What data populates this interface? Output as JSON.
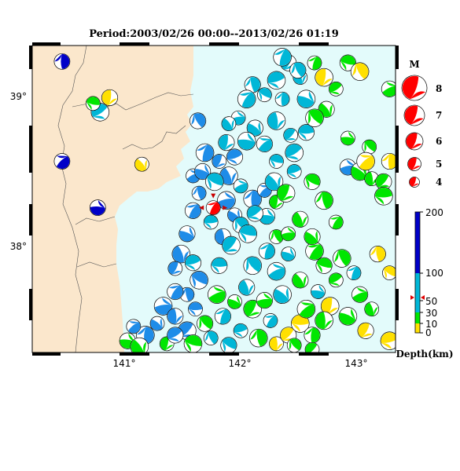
{
  "title": "Period:2003/02/26 00:00--2013/02/26 01:19",
  "lon_ticks": [
    "141°",
    "142°",
    "143°"
  ],
  "lat_ticks": [
    "39°",
    "38°"
  ],
  "map": {
    "lon_range": [
      140.25,
      143.3
    ],
    "lat_range": [
      37.3,
      39.42
    ]
  },
  "magnitude_legend": {
    "title": "M",
    "labels": [
      "8",
      "7",
      "6",
      "5",
      "4"
    ]
  },
  "depth_scale": {
    "title": "Depth(km)",
    "labels": [
      "200",
      "100",
      "50",
      "30",
      "10",
      "0"
    ]
  },
  "colors": {
    "land": "#fbe7cc",
    "sea": "#e3fbfb",
    "shallow": "#ffe000",
    "d10_30": "#00e600",
    "d30_100": "#00b7d7",
    "d100_200": "#0000c8",
    "mainshock": "#ff0000",
    "mid_blue": "#1e8ce8"
  },
  "mainshock": {
    "lon": 141.77,
    "lat": 38.3
  },
  "mechanisms": [
    {
      "lon": 140.5,
      "lat": 39.31,
      "d": "deep"
    },
    {
      "lon": 140.5,
      "lat": 38.62,
      "d": "deep"
    },
    {
      "lon": 140.8,
      "lat": 38.3,
      "d": "deep"
    },
    {
      "lon": 141.17,
      "lat": 38.6,
      "d": "shallow"
    },
    {
      "lon": 140.9,
      "lat": 39.06,
      "d": "shallow"
    },
    {
      "lon": 140.82,
      "lat": 38.96,
      "d": "mid"
    },
    {
      "lon": 140.76,
      "lat": 39.02,
      "d": "green"
    },
    {
      "lon": 141.64,
      "lat": 38.9,
      "d": "blue"
    },
    {
      "lon": 141.7,
      "lat": 38.68,
      "d": "blue"
    },
    {
      "lon": 141.6,
      "lat": 38.52,
      "d": "blue"
    },
    {
      "lon": 141.68,
      "lat": 38.55,
      "d": "blue"
    },
    {
      "lon": 141.9,
      "lat": 38.52,
      "d": "blue"
    },
    {
      "lon": 141.82,
      "lat": 38.62,
      "d": "blue"
    },
    {
      "lon": 141.95,
      "lat": 38.65,
      "d": "blue"
    },
    {
      "lon": 141.78,
      "lat": 38.48,
      "d": "cyan"
    },
    {
      "lon": 141.65,
      "lat": 38.4,
      "d": "blue"
    },
    {
      "lon": 141.6,
      "lat": 38.28,
      "d": "blue"
    },
    {
      "lon": 141.88,
      "lat": 38.35,
      "d": "blue"
    },
    {
      "lon": 141.95,
      "lat": 38.25,
      "d": "blue"
    },
    {
      "lon": 141.85,
      "lat": 38.1,
      "d": "blue"
    },
    {
      "lon": 141.92,
      "lat": 38.04,
      "d": "cyan"
    },
    {
      "lon": 141.75,
      "lat": 38.2,
      "d": "cyan"
    },
    {
      "lon": 142.0,
      "lat": 38.18,
      "d": "cyan"
    },
    {
      "lon": 142.1,
      "lat": 38.36,
      "d": "blue"
    },
    {
      "lon": 142.2,
      "lat": 38.42,
      "d": "blue"
    },
    {
      "lon": 142.22,
      "lat": 38.24,
      "d": "cyan"
    },
    {
      "lon": 142.28,
      "lat": 38.48,
      "d": "cyan"
    },
    {
      "lon": 142.3,
      "lat": 38.34,
      "d": "green"
    },
    {
      "lon": 142.12,
      "lat": 38.26,
      "d": "cyan"
    },
    {
      "lon": 142.06,
      "lat": 38.12,
      "d": "cyan"
    },
    {
      "lon": 142.3,
      "lat": 38.1,
      "d": "green"
    },
    {
      "lon": 142.22,
      "lat": 38.0,
      "d": "cyan"
    },
    {
      "lon": 142.3,
      "lat": 37.86,
      "d": "cyan"
    },
    {
      "lon": 142.4,
      "lat": 37.98,
      "d": "cyan"
    },
    {
      "lon": 142.5,
      "lat": 38.22,
      "d": "green"
    },
    {
      "lon": 142.38,
      "lat": 38.4,
      "d": "green"
    },
    {
      "lon": 142.45,
      "lat": 38.55,
      "d": "cyan"
    },
    {
      "lon": 142.6,
      "lat": 38.48,
      "d": "green"
    },
    {
      "lon": 142.7,
      "lat": 38.35,
      "d": "green"
    },
    {
      "lon": 142.8,
      "lat": 38.2,
      "d": "green"
    },
    {
      "lon": 142.9,
      "lat": 38.58,
      "d": "blue"
    },
    {
      "lon": 143.0,
      "lat": 38.55,
      "d": "green"
    },
    {
      "lon": 143.1,
      "lat": 38.5,
      "d": "green"
    },
    {
      "lon": 143.2,
      "lat": 38.48,
      "d": "green"
    },
    {
      "lon": 143.2,
      "lat": 38.38,
      "d": "green"
    },
    {
      "lon": 143.08,
      "lat": 38.72,
      "d": "green"
    },
    {
      "lon": 143.25,
      "lat": 38.62,
      "d": "shallow"
    },
    {
      "lon": 143.05,
      "lat": 38.62,
      "d": "shallow"
    },
    {
      "lon": 142.9,
      "lat": 38.78,
      "d": "green"
    },
    {
      "lon": 142.72,
      "lat": 38.98,
      "d": "green"
    },
    {
      "lon": 142.7,
      "lat": 39.2,
      "d": "shallow"
    },
    {
      "lon": 142.8,
      "lat": 39.12,
      "d": "green"
    },
    {
      "lon": 142.9,
      "lat": 39.3,
      "d": "green"
    },
    {
      "lon": 143.0,
      "lat": 39.24,
      "d": "shallow"
    },
    {
      "lon": 142.62,
      "lat": 39.3,
      "d": "green"
    },
    {
      "lon": 143.25,
      "lat": 39.12,
      "d": "green"
    },
    {
      "lon": 142.55,
      "lat": 39.05,
      "d": "cyan"
    },
    {
      "lon": 142.5,
      "lat": 39.2,
      "d": "cyan"
    },
    {
      "lon": 142.4,
      "lat": 39.3,
      "d": "cyan"
    },
    {
      "lon": 142.3,
      "lat": 39.18,
      "d": "cyan"
    },
    {
      "lon": 142.2,
      "lat": 39.08,
      "d": "cyan"
    },
    {
      "lon": 142.1,
      "lat": 39.15,
      "d": "cyan"
    },
    {
      "lon": 142.05,
      "lat": 39.05,
      "d": "cyan"
    },
    {
      "lon": 141.98,
      "lat": 38.92,
      "d": "cyan"
    },
    {
      "lon": 142.12,
      "lat": 38.85,
      "d": "cyan"
    },
    {
      "lon": 142.3,
      "lat": 38.9,
      "d": "cyan"
    },
    {
      "lon": 142.42,
      "lat": 38.8,
      "d": "cyan"
    },
    {
      "lon": 142.55,
      "lat": 38.82,
      "d": "cyan"
    },
    {
      "lon": 142.62,
      "lat": 38.92,
      "d": "green"
    },
    {
      "lon": 142.35,
      "lat": 39.05,
      "d": "cyan"
    },
    {
      "lon": 142.2,
      "lat": 38.74,
      "d": "cyan"
    },
    {
      "lon": 142.05,
      "lat": 38.76,
      "d": "cyan"
    },
    {
      "lon": 141.9,
      "lat": 38.88,
      "d": "cyan"
    },
    {
      "lon": 141.88,
      "lat": 38.75,
      "d": "cyan"
    },
    {
      "lon": 142.45,
      "lat": 38.68,
      "d": "cyan"
    },
    {
      "lon": 142.3,
      "lat": 38.62,
      "d": "cyan"
    },
    {
      "lon": 142.48,
      "lat": 39.25,
      "d": "cyan"
    },
    {
      "lon": 142.35,
      "lat": 39.34,
      "d": "cyan"
    },
    {
      "lon": 142.0,
      "lat": 38.45,
      "d": "cyan"
    },
    {
      "lon": 141.55,
      "lat": 38.12,
      "d": "blue"
    },
    {
      "lon": 141.5,
      "lat": 37.98,
      "d": "blue"
    },
    {
      "lon": 141.45,
      "lat": 37.88,
      "d": "blue"
    },
    {
      "lon": 141.6,
      "lat": 37.92,
      "d": "cyan"
    },
    {
      "lon": 141.65,
      "lat": 37.8,
      "d": "blue"
    },
    {
      "lon": 141.55,
      "lat": 37.7,
      "d": "blue"
    },
    {
      "lon": 141.45,
      "lat": 37.72,
      "d": "blue"
    },
    {
      "lon": 141.35,
      "lat": 37.62,
      "d": "blue"
    },
    {
      "lon": 141.3,
      "lat": 37.5,
      "d": "blue"
    },
    {
      "lon": 141.45,
      "lat": 37.55,
      "d": "blue"
    },
    {
      "lon": 141.55,
      "lat": 37.45,
      "d": "blue"
    },
    {
      "lon": 141.62,
      "lat": 37.6,
      "d": "blue"
    },
    {
      "lon": 141.7,
      "lat": 37.5,
      "d": "green"
    },
    {
      "lon": 141.2,
      "lat": 37.42,
      "d": "blue"
    },
    {
      "lon": 141.1,
      "lat": 37.48,
      "d": "blue"
    },
    {
      "lon": 141.05,
      "lat": 37.38,
      "d": "green"
    },
    {
      "lon": 141.15,
      "lat": 37.34,
      "d": "green"
    },
    {
      "lon": 141.38,
      "lat": 37.36,
      "d": "green"
    },
    {
      "lon": 141.45,
      "lat": 37.42,
      "d": "blue"
    },
    {
      "lon": 141.6,
      "lat": 37.36,
      "d": "green"
    },
    {
      "lon": 141.75,
      "lat": 37.4,
      "d": "cyan"
    },
    {
      "lon": 141.85,
      "lat": 37.55,
      "d": "cyan"
    },
    {
      "lon": 141.8,
      "lat": 37.7,
      "d": "green"
    },
    {
      "lon": 141.95,
      "lat": 37.65,
      "d": "green"
    },
    {
      "lon": 142.05,
      "lat": 37.75,
      "d": "cyan"
    },
    {
      "lon": 142.1,
      "lat": 37.6,
      "d": "green"
    },
    {
      "lon": 142.0,
      "lat": 37.45,
      "d": "cyan"
    },
    {
      "lon": 141.9,
      "lat": 37.35,
      "d": "cyan"
    },
    {
      "lon": 142.15,
      "lat": 37.4,
      "d": "green"
    },
    {
      "lon": 142.25,
      "lat": 37.52,
      "d": "cyan"
    },
    {
      "lon": 142.2,
      "lat": 37.66,
      "d": "green"
    },
    {
      "lon": 142.35,
      "lat": 37.7,
      "d": "cyan"
    },
    {
      "lon": 142.3,
      "lat": 37.36,
      "d": "shallow"
    },
    {
      "lon": 142.4,
      "lat": 37.42,
      "d": "shallow"
    },
    {
      "lon": 142.5,
      "lat": 37.5,
      "d": "shallow"
    },
    {
      "lon": 142.45,
      "lat": 37.35,
      "d": "green"
    },
    {
      "lon": 142.6,
      "lat": 37.42,
      "d": "green"
    },
    {
      "lon": 142.55,
      "lat": 37.6,
      "d": "green"
    },
    {
      "lon": 142.65,
      "lat": 37.72,
      "d": "cyan"
    },
    {
      "lon": 142.5,
      "lat": 37.8,
      "d": "green"
    },
    {
      "lon": 142.75,
      "lat": 37.62,
      "d": "shallow"
    },
    {
      "lon": 142.8,
      "lat": 37.8,
      "d": "green"
    },
    {
      "lon": 142.7,
      "lat": 37.9,
      "d": "green"
    },
    {
      "lon": 142.85,
      "lat": 37.95,
      "d": "green"
    },
    {
      "lon": 142.95,
      "lat": 37.85,
      "d": "cyan"
    },
    {
      "lon": 143.0,
      "lat": 37.7,
      "d": "green"
    },
    {
      "lon": 142.9,
      "lat": 37.55,
      "d": "green"
    },
    {
      "lon": 143.1,
      "lat": 37.6,
      "d": "green"
    },
    {
      "lon": 143.05,
      "lat": 37.45,
      "d": "shallow"
    },
    {
      "lon": 143.25,
      "lat": 37.38,
      "d": "shallow"
    },
    {
      "lon": 143.25,
      "lat": 37.85,
      "d": "shallow"
    },
    {
      "lon": 143.15,
      "lat": 37.98,
      "d": "shallow"
    },
    {
      "lon": 142.62,
      "lat": 38.0,
      "d": "green"
    },
    {
      "lon": 142.4,
      "lat": 38.12,
      "d": "green"
    },
    {
      "lon": 142.6,
      "lat": 38.1,
      "d": "green"
    },
    {
      "lon": 142.7,
      "lat": 37.52,
      "d": "green"
    },
    {
      "lon": 142.6,
      "lat": 37.32,
      "d": "green"
    },
    {
      "lon": 141.82,
      "lat": 37.9,
      "d": "cyan"
    },
    {
      "lon": 142.1,
      "lat": 37.9,
      "d": "cyan"
    }
  ]
}
